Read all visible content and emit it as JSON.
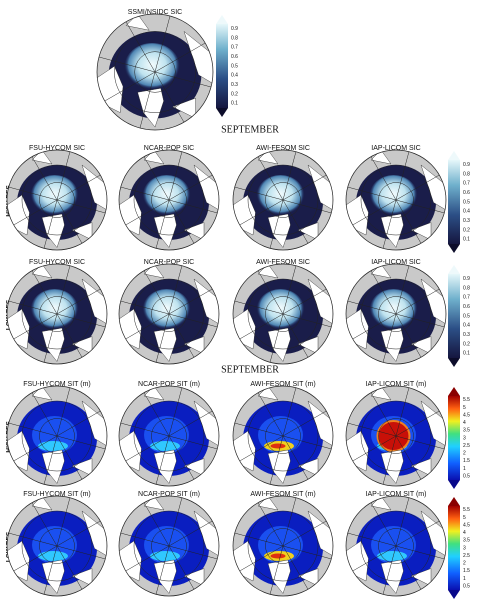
{
  "top": {
    "title": "SSMI/NSIDC SIC",
    "colorbar_ticks": [
      "0.1",
      "0.2",
      "0.3",
      "0.4",
      "0.5",
      "0.6",
      "0.7",
      "0.8",
      "0.9"
    ]
  },
  "sections": [
    {
      "title": "SEPTEMBER",
      "colorbar_ticks": [
        "0.1",
        "0.2",
        "0.3",
        "0.4",
        "0.5",
        "0.6",
        "0.7",
        "0.8",
        "0.9"
      ],
      "rows": [
        {
          "label": "HIGH RES.",
          "panels": [
            "FSU-HYCOM SIC",
            "NCAR-POP SIC",
            "AWI-FESOM SIC",
            "IAP-LICOM SIC"
          ]
        },
        {
          "label": "LOW RES.",
          "panels": [
            "FSU-HYCOM SIC",
            "NCAR-POP SIC",
            "AWI-FESOM SIC",
            "IAP-LICOM SIC"
          ]
        }
      ]
    },
    {
      "title": "SEPTEMBER",
      "colorbar_ticks": [
        "0.5",
        "1",
        "1.5",
        "2",
        "2.5",
        "3",
        "3.5",
        "4",
        "4.5",
        "5",
        "5.5"
      ],
      "rows": [
        {
          "label": "HIGH RES.",
          "panels": [
            "FSU-HYCOM SIT (m)",
            "NCAR-POP SIT (m)",
            "AWI-FESOM SIT (m)",
            "IAP-LICOM SIT (m)"
          ]
        },
        {
          "label": "LOW RES.",
          "panels": [
            "FSU-HYCOM SIT (m)",
            "NCAR-POP  SIT (m)",
            "AWI-FESOM SIT (m)",
            "IAP-LICOM SIT (m)"
          ]
        }
      ]
    }
  ]
}
